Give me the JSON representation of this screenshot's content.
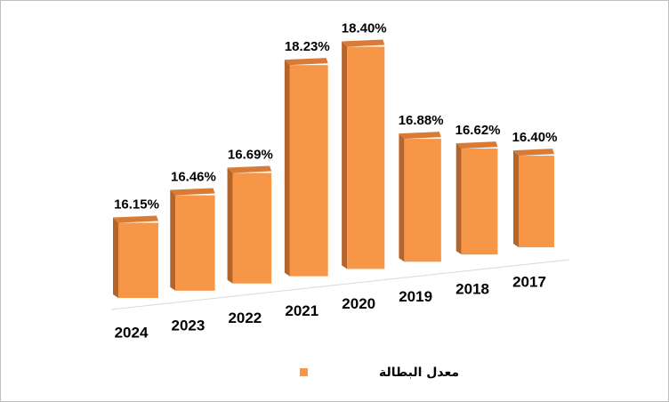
{
  "chart_data": {
    "type": "bar3d",
    "categories": [
      "2024",
      "2023",
      "2022",
      "2021",
      "2020",
      "2019",
      "2018",
      "2017"
    ],
    "series": [
      {
        "name": "معدل البطالة",
        "color": "#f79646",
        "values": [
          16.15,
          16.46,
          16.69,
          18.23,
          18.4,
          16.88,
          16.62,
          16.4
        ],
        "value_labels": [
          "16.15%",
          "16.46%",
          "16.69%",
          "18.23%",
          "18.40%",
          "16.88%",
          "16.62%",
          "16.40%"
        ]
      }
    ],
    "ylim": [
      15,
      18.5
    ],
    "legend": "bottom"
  }
}
